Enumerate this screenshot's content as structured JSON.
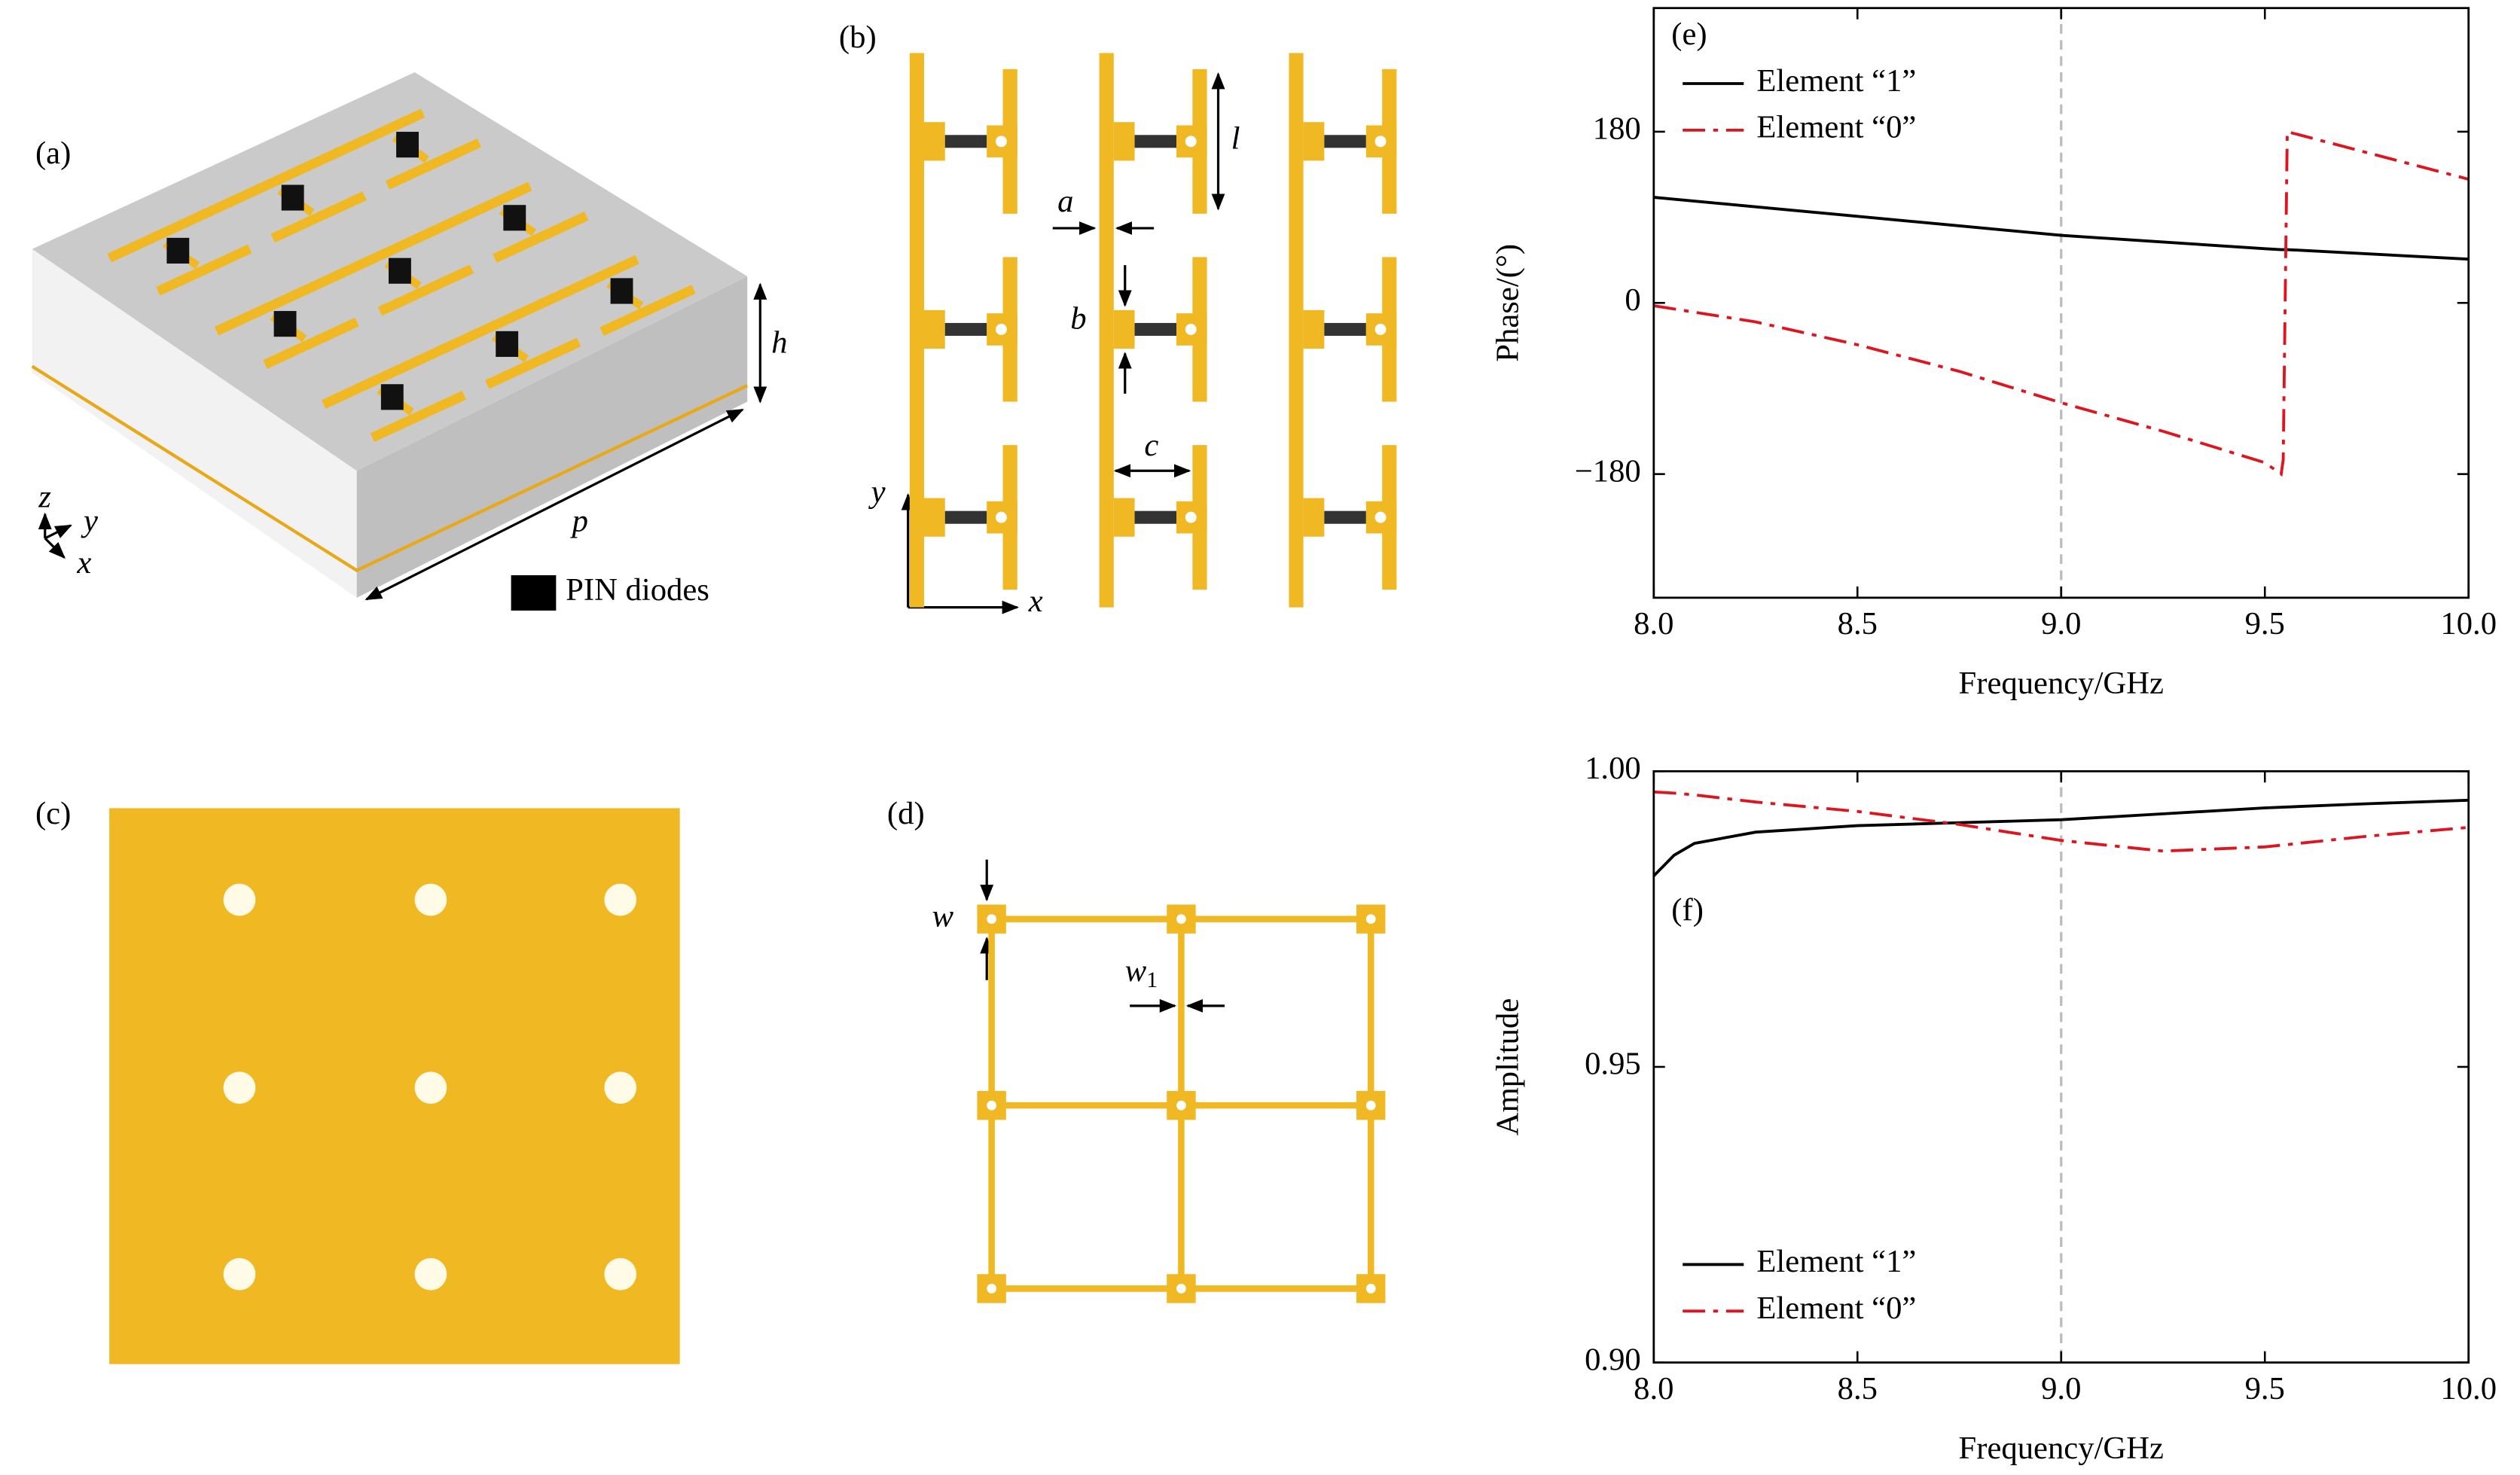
{
  "chart_data": [
    {
      "type": "line",
      "annotation": "(e)",
      "xlabel": "Frequency/GHz",
      "ylabel": "Phase/(°)",
      "x": [
        8,
        8.25,
        8.5,
        8.75,
        9,
        9.25,
        9.5,
        9.54,
        9.545,
        9.555,
        10
      ],
      "series": [
        {
          "name": "Element “1”",
          "color": "#000000",
          "linestyle": "solid",
          "values": [
            111,
            101,
            91,
            81,
            71,
            64,
            57,
            56,
            56,
            56,
            46
          ]
        },
        {
          "name": "Element “0”",
          "color": "#e0141e",
          "linestyle": "dashdot",
          "values": [
            -3,
            -20,
            -44,
            -72,
            -105,
            -135,
            -168,
            -180,
            -165,
            180,
            130
          ]
        }
      ],
      "xlim": [
        8,
        10
      ],
      "xticks": [
        {
          "value": 8,
          "label": "8.0"
        },
        8.5,
        {
          "value": 9,
          "label": "9.0"
        },
        9.5,
        {
          "value": 10,
          "label": "10.0"
        }
      ],
      "ylim": [
        -310,
        310
      ],
      "yticks": [
        {
          "value": -180,
          "label": "−180"
        },
        0,
        180
      ],
      "reference_x": 9,
      "legend": "upper left"
    },
    {
      "type": "line",
      "annotation": "(f)",
      "xlabel": "Frequency/GHz",
      "ylabel": "Amplitude",
      "x": [
        8,
        8.05,
        8.1,
        8.25,
        8.5,
        8.75,
        9,
        9.25,
        9.5,
        9.75,
        10
      ],
      "series": [
        {
          "name": "Element “1”",
          "color": "#000000",
          "linestyle": "solid",
          "values": [
            0.9823,
            0.9858,
            0.9878,
            0.9897,
            0.9908,
            0.9913,
            0.9918,
            0.9928,
            0.9938,
            0.9945,
            0.9951
          ]
        },
        {
          "name": "Element “0”",
          "color": "#e0141e",
          "linestyle": "dashdot",
          "values": [
            0.9965,
            0.9963,
            0.996,
            0.9948,
            0.9932,
            0.991,
            0.9883,
            0.9865,
            0.9872,
            0.989,
            0.9905
          ]
        }
      ],
      "xlim": [
        8,
        10
      ],
      "xticks": [
        {
          "value": 8,
          "label": "8.0"
        },
        8.5,
        {
          "value": 9,
          "label": "9.0"
        },
        9.5,
        {
          "value": 10,
          "label": "10.0"
        }
      ],
      "ylim": [
        0.9,
        1
      ],
      "yticks": [
        {
          "value": 0.9,
          "label": "0.90"
        },
        0.95,
        {
          "value": 1,
          "label": "1.00"
        }
      ],
      "reference_x": 9,
      "legend": "lower left"
    }
  ],
  "panels": {
    "a": {
      "label": "(a)",
      "h": "h",
      "p": "p",
      "axes": [
        "z",
        "y",
        "x"
      ],
      "legend": "PIN diodes"
    },
    "b": {
      "label": "(b)",
      "dims": [
        "a",
        "b",
        "c",
        "l"
      ],
      "axes": [
        "y",
        "x"
      ]
    },
    "c": {
      "label": "(c)"
    },
    "d": {
      "label": "(d)",
      "w": "w",
      "w1": [
        "w",
        "1"
      ]
    }
  }
}
